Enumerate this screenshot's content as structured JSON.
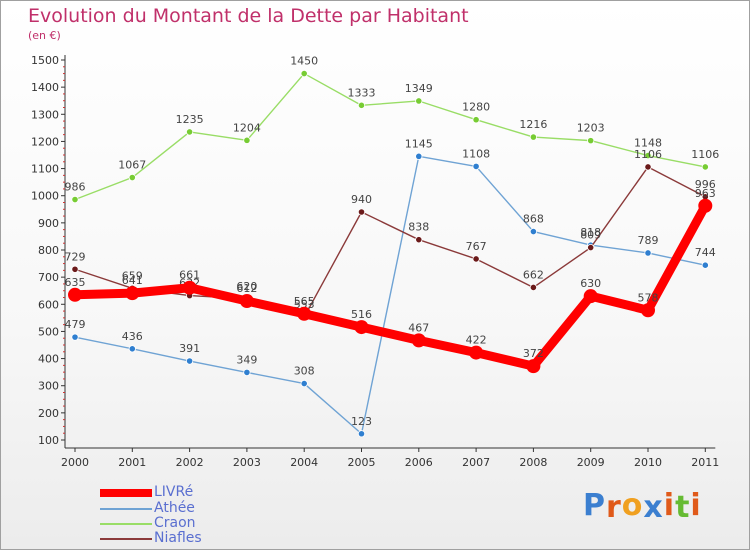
{
  "title": "Evolution du Montant de la Dette par Habitant",
  "unit": "(en €)",
  "logo_text": "Proxiti",
  "chart_data": {
    "type": "line",
    "title": "Evolution du Montant de la Dette par Habitant",
    "ylabel": "(en €)",
    "xlabel": "",
    "ylim": [
      100,
      1500
    ],
    "yticks": [
      100,
      200,
      300,
      400,
      500,
      600,
      700,
      800,
      900,
      1000,
      1100,
      1200,
      1300,
      1400,
      1500
    ],
    "grid": false,
    "legend_position": "bottom-left",
    "x": [
      "2000",
      "2001",
      "2002",
      "2003",
      "2004",
      "2005",
      "2006",
      "2007",
      "2008",
      "2009",
      "2010",
      "2011"
    ],
    "series": [
      {
        "name": "LIVRé",
        "color": "#ff0000",
        "marker_color": "#ff0000",
        "thick": true,
        "values": [
          635,
          641,
          661,
          612,
          565,
          516,
          467,
          422,
          372,
          630,
          578,
          963
        ]
      },
      {
        "name": "Athée",
        "color": "#6fa3d4",
        "marker_color": "#2f7fd0",
        "thick": false,
        "values": [
          479,
          436,
          391,
          349,
          308,
          123,
          1145,
          1108,
          868,
          818,
          789,
          744
        ]
      },
      {
        "name": "Craon",
        "color": "#99dd66",
        "marker_color": "#77cc33",
        "thick": false,
        "values": [
          986,
          1067,
          1235,
          1204,
          1450,
          1333,
          1349,
          1280,
          1216,
          1203,
          1148,
          1106
        ]
      },
      {
        "name": "Niafles",
        "color": "#8b3a3a",
        "marker_color": "#6b1a1a",
        "thick": false,
        "values": [
          729,
          659,
          632,
          620,
          553,
          940,
          838,
          767,
          662,
          809,
          1106,
          996
        ]
      }
    ]
  }
}
